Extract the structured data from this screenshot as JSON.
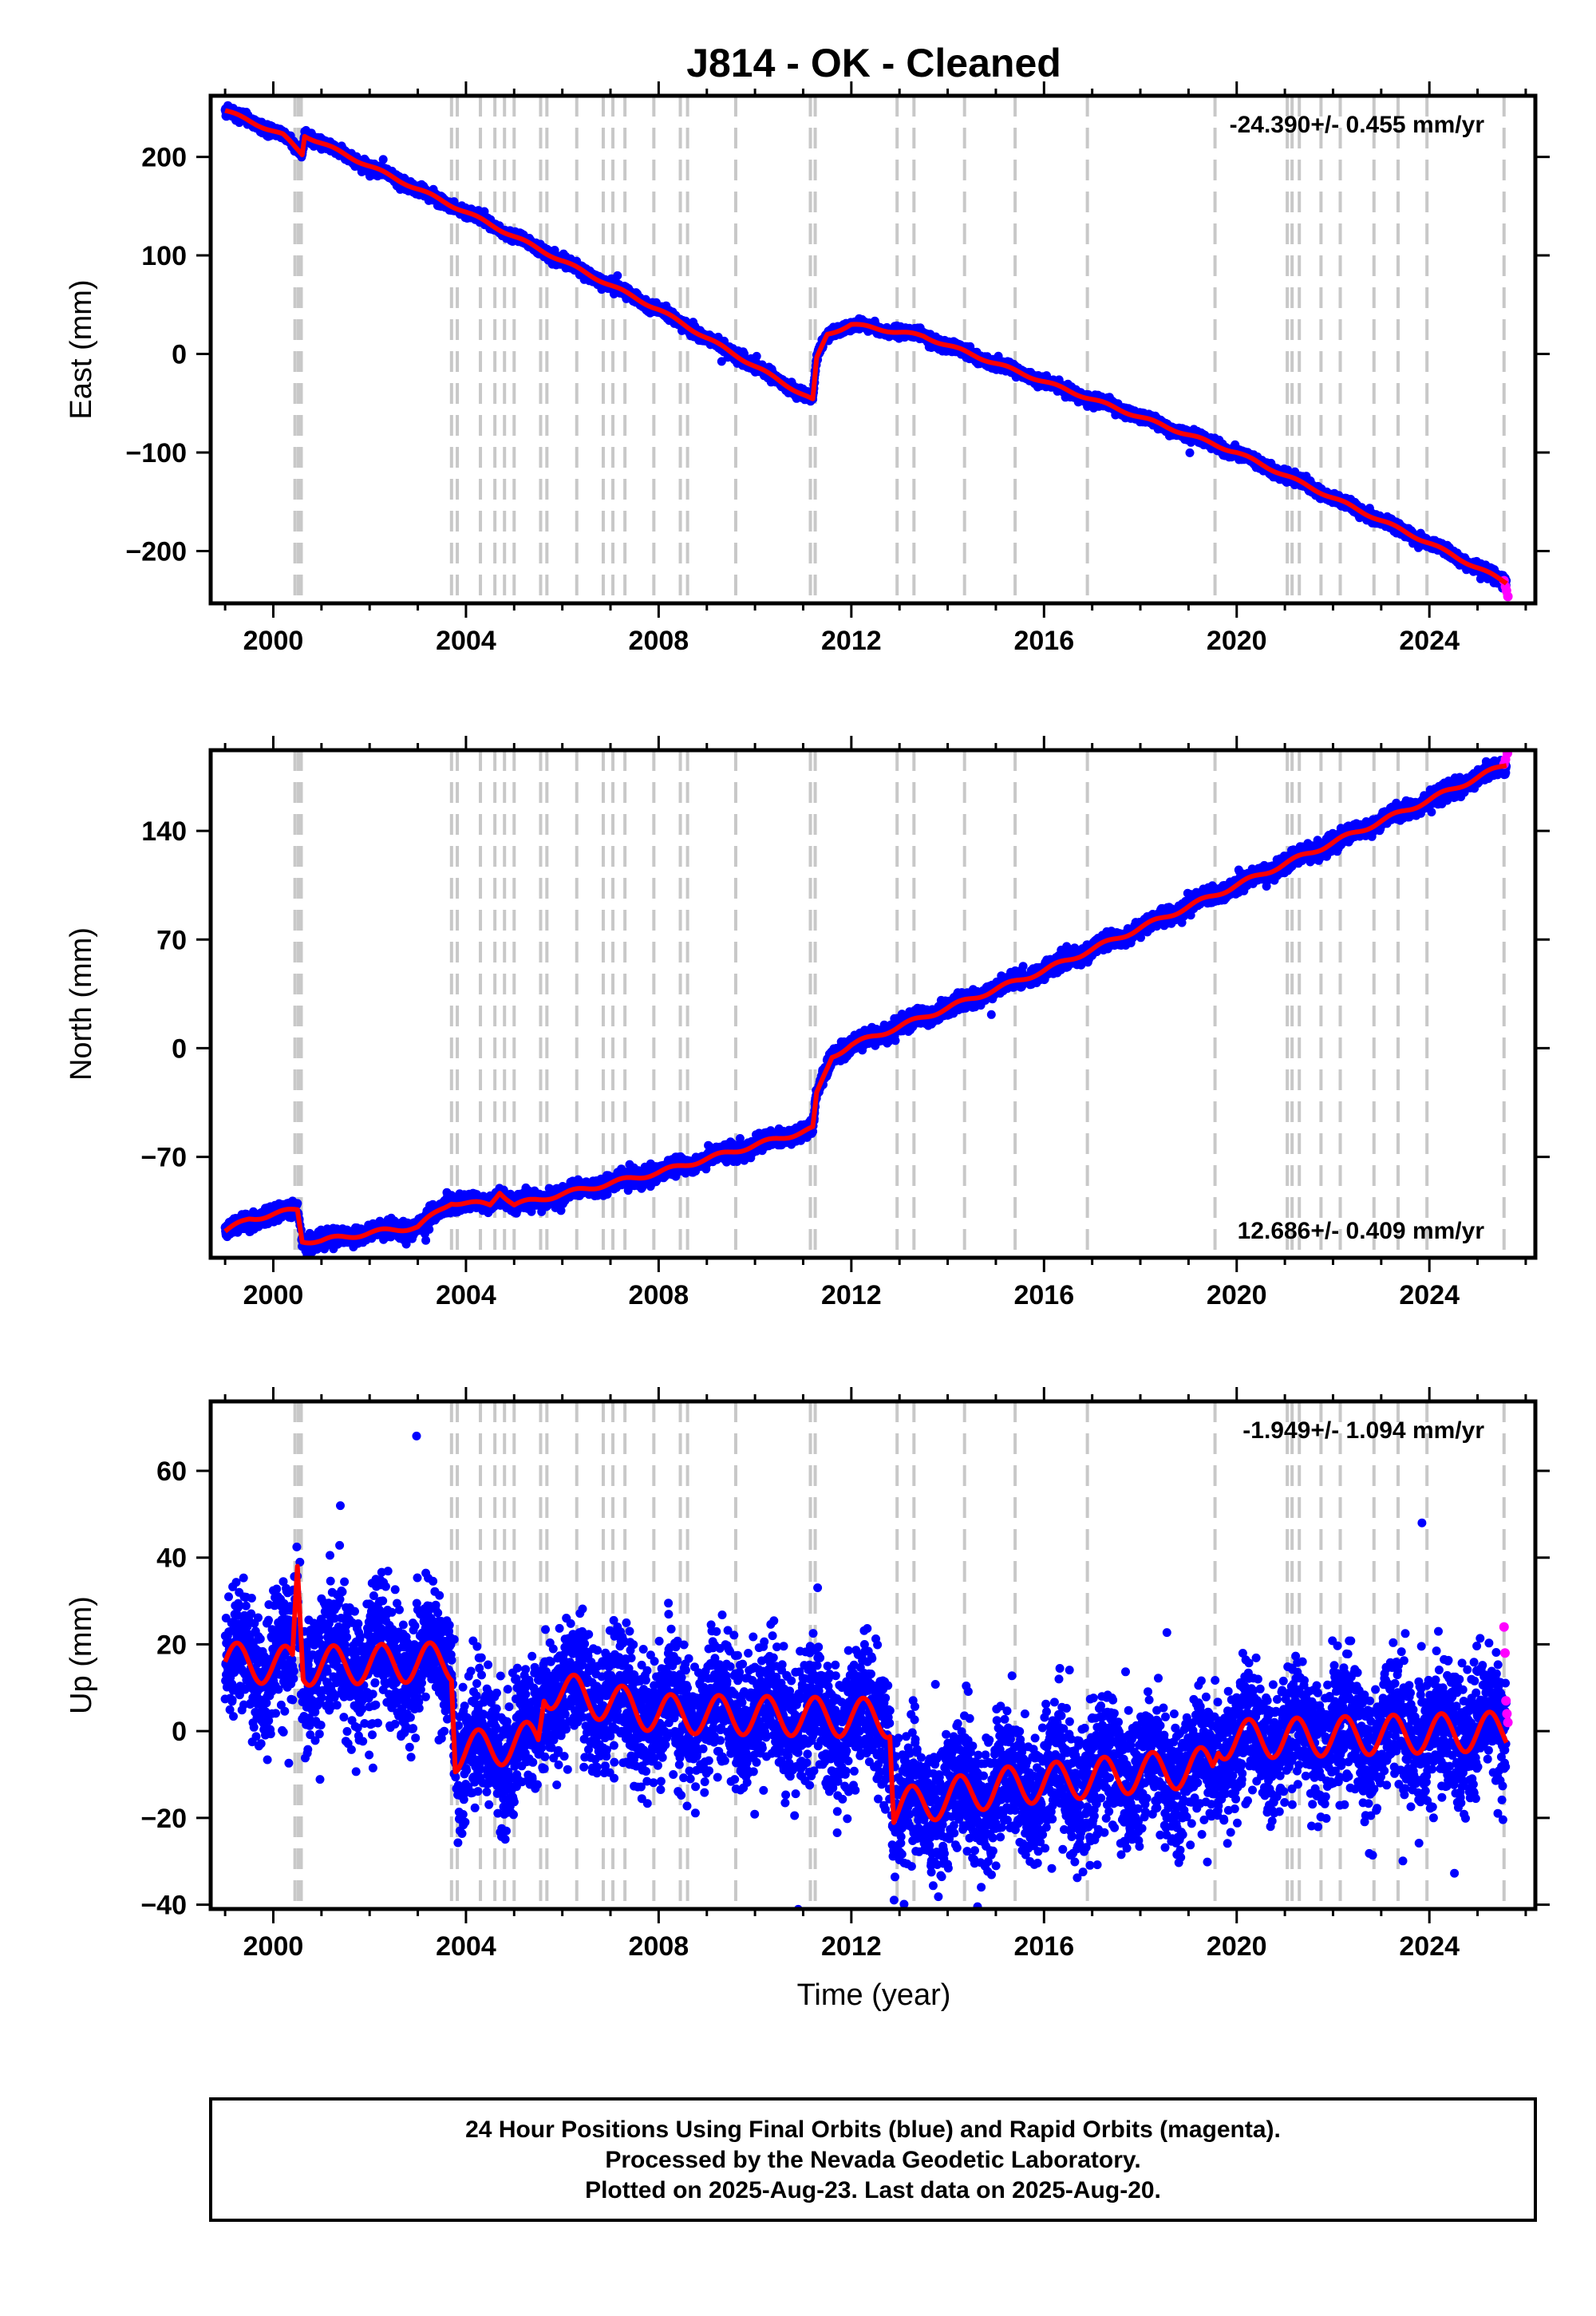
{
  "title": "J814  - OK - Cleaned",
  "xlabel": "Time (year)",
  "footer": [
    "24 Hour Positions Using Final Orbits (blue) and Rapid Orbits (magenta).",
    "Processed by the Nevada Geodetic Laboratory.",
    "Plotted on 2025-Aug-23. Last data on 2025-Aug-20."
  ],
  "colors": {
    "final_orbits": "#0000ff",
    "rapid_orbits": "#ff00ff",
    "model": "#ff0000",
    "event_lines": "#c8c8c8"
  },
  "chart_data": [
    {
      "type": "scatter",
      "panel": "east",
      "ylabel": "East (mm)",
      "rate_label": "-24.390+/- 0.455 mm/yr",
      "rate_position": "top-right",
      "xlim": [
        1998.7,
        2026.2
      ],
      "ylim": [
        -253,
        262
      ],
      "xticks": [
        2000,
        2004,
        2008,
        2012,
        2016,
        2020,
        2024
      ],
      "yticks": [
        -200,
        -100,
        0,
        100,
        200
      ],
      "ytick_labels": [
        "−200",
        "−100",
        "0",
        "100",
        "200"
      ],
      "model_knots": [
        [
          1999.0,
          247
        ],
        [
          2000.2,
          222
        ],
        [
          2000.6,
          203
        ],
        [
          2000.65,
          222
        ],
        [
          2004.0,
          144
        ],
        [
          2008.0,
          45
        ],
        [
          2011.2,
          -47
        ],
        [
          2011.28,
          -5
        ],
        [
          2011.5,
          20
        ],
        [
          2012.0,
          30
        ],
        [
          2013.5,
          18
        ],
        [
          2016.0,
          -28
        ],
        [
          2020.0,
          -100
        ],
        [
          2024.0,
          -192
        ],
        [
          2025.6,
          -232
        ]
      ],
      "rapid_points": [
        [
          2025.55,
          -230
        ],
        [
          2025.58,
          -236
        ],
        [
          2025.6,
          -240
        ],
        [
          2025.63,
          -246
        ]
      ],
      "scatter_sigma_mm": 2.5,
      "seasonal_amp_mm": 1.5
    },
    {
      "type": "scatter",
      "panel": "north",
      "ylabel": "North (mm)",
      "rate_label": "12.686+/- 0.409 mm/yr",
      "rate_position": "bottom-right",
      "xlim": [
        1998.7,
        2026.2
      ],
      "ylim": [
        -135,
        192
      ],
      "xticks": [
        2000,
        2004,
        2008,
        2012,
        2016,
        2020,
        2024
      ],
      "yticks": [
        -70,
        0,
        70,
        140
      ],
      "ytick_labels": [
        "−70",
        "0",
        "70",
        "140"
      ],
      "model_knots": [
        [
          1999.0,
          -118
        ],
        [
          1999.5,
          -110
        ],
        [
          2000.5,
          -104
        ],
        [
          2000.6,
          -124
        ],
        [
          2001.0,
          -124
        ],
        [
          2002.0,
          -119
        ],
        [
          2003.0,
          -115
        ],
        [
          2003.7,
          -99
        ],
        [
          2004.5,
          -101
        ],
        [
          2004.7,
          -92
        ],
        [
          2005.0,
          -101
        ],
        [
          2008.0,
          -80
        ],
        [
          2011.2,
          -52
        ],
        [
          2011.28,
          -30
        ],
        [
          2011.6,
          -5
        ],
        [
          2012.0,
          2
        ],
        [
          2016.0,
          50
        ],
        [
          2020.0,
          105
        ],
        [
          2024.0,
          160
        ],
        [
          2025.6,
          183
        ]
      ],
      "rapid_points": [
        [
          2025.55,
          183
        ],
        [
          2025.58,
          186
        ],
        [
          2025.62,
          190
        ]
      ],
      "scatter_sigma_mm": 2.5,
      "seasonal_amp_mm": 1.5
    },
    {
      "type": "scatter",
      "panel": "up",
      "ylabel": "Up (mm)",
      "rate_label": "-1.949+/- 1.094 mm/yr",
      "rate_position": "top-right",
      "xlim": [
        1998.7,
        2026.2
      ],
      "ylim": [
        -41,
        76
      ],
      "xticks": [
        2000,
        2004,
        2008,
        2012,
        2016,
        2020,
        2024
      ],
      "yticks": [
        -40,
        -20,
        0,
        20,
        40,
        60
      ],
      "ytick_labels": [
        "−40",
        "−20",
        "0",
        "20",
        "40",
        "60"
      ],
      "model_knots": [
        [
          1999.0,
          16
        ],
        [
          2000.4,
          15
        ],
        [
          2000.5,
          38
        ],
        [
          2000.62,
          15
        ],
        [
          2003.7,
          16
        ],
        [
          2003.78,
          -5
        ],
        [
          2005.5,
          -2
        ],
        [
          2005.62,
          10
        ],
        [
          2008.0,
          4
        ],
        [
          2012.8,
          3
        ],
        [
          2012.88,
          -18
        ],
        [
          2015.0,
          -13
        ],
        [
          2019.5,
          -8
        ],
        [
          2019.62,
          -2
        ],
        [
          2025.6,
          0
        ]
      ],
      "rapid_points": [
        [
          2025.55,
          24
        ],
        [
          2025.57,
          18
        ],
        [
          2025.59,
          7
        ],
        [
          2025.61,
          4
        ],
        [
          2025.63,
          2
        ]
      ],
      "scatter_sigma_mm": 7.5,
      "seasonal_amp_mm": 4.5
    }
  ],
  "event_lines_years": [
    2000.45,
    2000.52,
    2000.58,
    2003.7,
    2003.82,
    2004.3,
    2004.6,
    2004.8,
    2005.0,
    2005.55,
    2005.68,
    2006.3,
    2006.85,
    2007.05,
    2007.3,
    2007.9,
    2008.45,
    2008.6,
    2009.6,
    2011.15,
    2011.25,
    2012.95,
    2013.3,
    2014.35,
    2015.4,
    2016.9,
    2019.55,
    2021.05,
    2021.15,
    2021.3,
    2021.75,
    2022.15,
    2022.85,
    2023.35,
    2023.95,
    2025.55
  ]
}
